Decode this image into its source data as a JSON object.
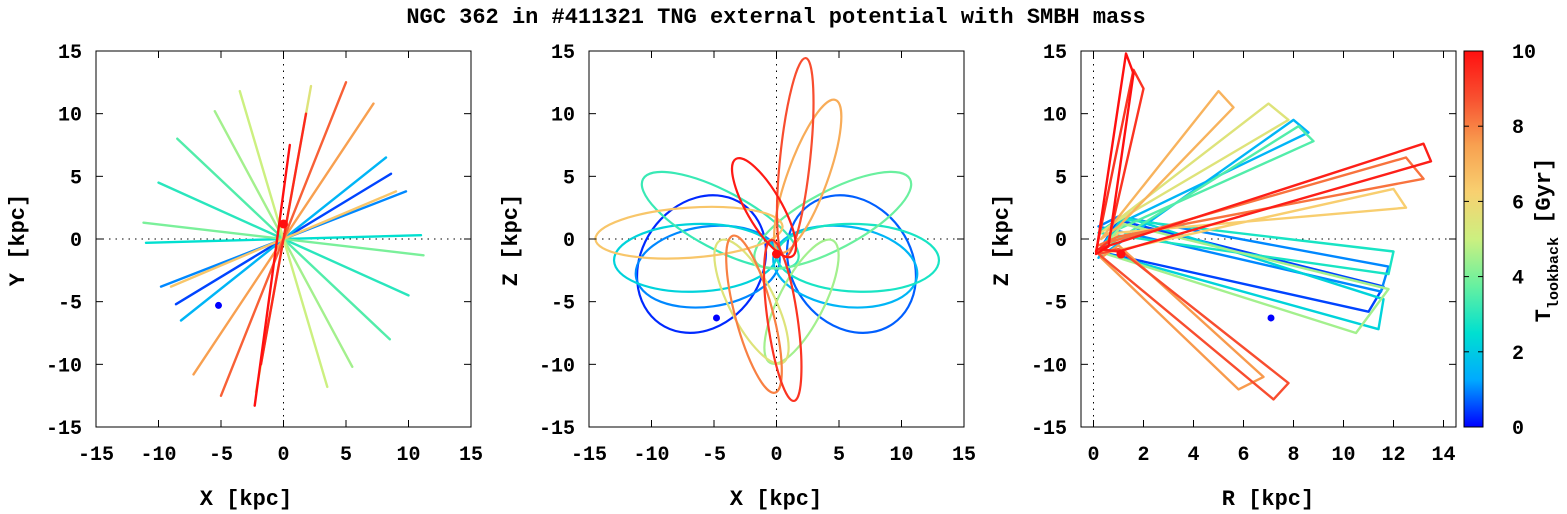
{
  "chart_data": {
    "title": "NGC 362 in #411321 TNG external potential with SMBH mass",
    "panels": [
      {
        "type": "line",
        "name": "xy",
        "xlabel": "X [kpc]",
        "ylabel": "Y [kpc]",
        "xlim": [
          -15,
          15
        ],
        "ylim": [
          -15,
          15
        ],
        "xticks": [
          "-15",
          "-10",
          "-5",
          "0",
          "5",
          "10",
          "15"
        ],
        "yticks": [
          "-15",
          "-10",
          "-5",
          "0",
          "5",
          "10",
          "15"
        ],
        "zero_lines": true,
        "series": [
          {
            "name": "orbit 0.5 Gyr",
            "t": 0.5,
            "points": [
              [
                8.6,
                5.2
              ],
              [
                -8.6,
                -5.2
              ]
            ]
          },
          {
            "name": "orbit 1.0 Gyr",
            "t": 1.0,
            "points": [
              [
                9.8,
                3.8
              ],
              [
                -9.8,
                -3.8
              ]
            ]
          },
          {
            "name": "orbit 1.5 Gyr",
            "t": 1.5,
            "points": [
              [
                8.2,
                6.5
              ],
              [
                -8.2,
                -6.5
              ]
            ]
          },
          {
            "name": "orbit 2.5 Gyr",
            "t": 2.5,
            "points": [
              [
                11.0,
                0.3
              ],
              [
                -11.0,
                -0.3
              ]
            ]
          },
          {
            "name": "orbit 3.0 Gyr",
            "t": 3.0,
            "points": [
              [
                -10.0,
                4.5
              ],
              [
                10.0,
                -4.5
              ]
            ]
          },
          {
            "name": "orbit 3.5 Gyr",
            "t": 3.5,
            "points": [
              [
                -8.5,
                8.0
              ],
              [
                8.5,
                -8.0
              ]
            ]
          },
          {
            "name": "orbit 4.0 Gyr",
            "t": 4.0,
            "points": [
              [
                -11.2,
                1.3
              ],
              [
                11.2,
                -1.3
              ]
            ]
          },
          {
            "name": "orbit 4.5 Gyr",
            "t": 4.5,
            "points": [
              [
                -5.5,
                10.2
              ],
              [
                5.5,
                -10.2
              ]
            ]
          },
          {
            "name": "orbit 5.0 Gyr",
            "t": 5.0,
            "points": [
              [
                -3.5,
                11.8
              ],
              [
                3.5,
                -11.8
              ]
            ]
          },
          {
            "name": "orbit 5.5 Gyr",
            "t": 5.5,
            "points": [
              [
                2.2,
                12.2
              ],
              [
                -2.2,
                -12.2
              ]
            ]
          },
          {
            "name": "orbit 6.5 Gyr",
            "t": 6.5,
            "points": [
              [
                9.0,
                3.8
              ],
              [
                -9.0,
                -3.8
              ]
            ]
          },
          {
            "name": "orbit 7.5 Gyr",
            "t": 7.5,
            "points": [
              [
                7.2,
                10.8
              ],
              [
                -7.2,
                -10.8
              ]
            ]
          },
          {
            "name": "orbit 8.5 Gyr",
            "t": 8.5,
            "points": [
              [
                5.0,
                12.5
              ],
              [
                -5.0,
                -12.5
              ]
            ]
          },
          {
            "name": "orbit 9.5 Gyr",
            "t": 9.5,
            "points": [
              [
                1.8,
                10.0
              ],
              [
                -1.8,
                -10.0
              ]
            ]
          },
          {
            "name": "orbit 10.0 Gyr",
            "t": 10.0,
            "points": [
              [
                0.5,
                7.5
              ],
              [
                -2.3,
                -13.3
              ]
            ]
          }
        ],
        "markers": [
          {
            "name": "position now",
            "t": 0.0,
            "x": -5.2,
            "y": -5.3
          },
          {
            "name": "position 10 Gyr ago",
            "t": 10.0,
            "x": 0.0,
            "y": 1.2
          }
        ]
      },
      {
        "type": "line",
        "name": "xz",
        "xlabel": "X [kpc]",
        "ylabel": "Z [kpc]",
        "xlim": [
          -15,
          15
        ],
        "ylim": [
          -15,
          15
        ],
        "xticks": [
          "-15",
          "-10",
          "-5",
          "0",
          "5",
          "10",
          "15"
        ],
        "yticks": [
          "-15",
          "-10",
          "-5",
          "0",
          "5",
          "10",
          "15"
        ],
        "zero_lines": true,
        "series": [
          {
            "name": "loop 0.3 Gyr",
            "t": 0.3,
            "ellipse": {
              "cx": -6.0,
              "cy": -2.0,
              "a": 4.8,
              "b": 5.8,
              "angle_deg": -35
            }
          },
          {
            "name": "loop 0.7 Gyr",
            "t": 0.7,
            "ellipse": {
              "cx": 6.0,
              "cy": -2.0,
              "a": 4.8,
              "b": 5.8,
              "angle_deg": 35
            }
          },
          {
            "name": "loop 1.0 Gyr",
            "t": 1.0,
            "ellipse": {
              "cx": -5.5,
              "cy": -2.2,
              "a": 5.8,
              "b": 3.2,
              "angle_deg": 8
            }
          },
          {
            "name": "loop 1.5 Gyr",
            "t": 1.5,
            "ellipse": {
              "cx": 5.5,
              "cy": -2.2,
              "a": 5.8,
              "b": 3.2,
              "angle_deg": -8
            }
          },
          {
            "name": "loop 2.2 Gyr",
            "t": 2.2,
            "ellipse": {
              "cx": -6.5,
              "cy": -1.5,
              "a": 6.5,
              "b": 2.7,
              "angle_deg": 2
            }
          },
          {
            "name": "loop 2.8 Gyr",
            "t": 2.8,
            "ellipse": {
              "cx": 6.5,
              "cy": -1.5,
              "a": 6.5,
              "b": 2.7,
              "angle_deg": -2
            }
          },
          {
            "name": "loop 3.2 Gyr",
            "t": 3.2,
            "ellipse": {
              "cx": -4.5,
              "cy": 1.5,
              "a": 7.0,
              "b": 2.3,
              "angle_deg": -28
            }
          },
          {
            "name": "loop 3.8 Gyr",
            "t": 3.8,
            "ellipse": {
              "cx": 4.5,
              "cy": 1.5,
              "a": 7.0,
              "b": 2.3,
              "angle_deg": 28
            }
          },
          {
            "name": "loop 4.5 Gyr",
            "t": 4.5,
            "ellipse": {
              "cx": 2.0,
              "cy": -5.0,
              "a": 5.5,
              "b": 1.8,
              "angle_deg": 63
            }
          },
          {
            "name": "loop 5.5 Gyr",
            "t": 5.5,
            "ellipse": {
              "cx": -2.0,
              "cy": -5.0,
              "a": 5.5,
              "b": 1.8,
              "angle_deg": -63
            }
          },
          {
            "name": "loop 6.5 Gyr",
            "t": 6.5,
            "ellipse": {
              "cx": -7.0,
              "cy": 0.5,
              "a": 7.5,
              "b": 2.0,
              "angle_deg": 4
            }
          },
          {
            "name": "loop 7.2 Gyr",
            "t": 7.2,
            "ellipse": {
              "cx": 2.5,
              "cy": 5.0,
              "a": 6.5,
              "b": 1.6,
              "angle_deg": 70
            }
          },
          {
            "name": "loop 8.0 Gyr",
            "t": 8.0,
            "ellipse": {
              "cx": -1.8,
              "cy": -6.0,
              "a": 6.5,
              "b": 1.5,
              "angle_deg": -75
            }
          },
          {
            "name": "loop 8.8 Gyr",
            "t": 8.8,
            "ellipse": {
              "cx": 1.5,
              "cy": 6.5,
              "a": 8.0,
              "b": 1.2,
              "angle_deg": 84
            }
          },
          {
            "name": "loop 9.3 Gyr",
            "t": 9.3,
            "ellipse": {
              "cx": 0.5,
              "cy": -6.5,
              "a": 6.5,
              "b": 1.2,
              "angle_deg": -82
            }
          },
          {
            "name": "loop 9.8 Gyr",
            "t": 9.8,
            "ellipse": {
              "cx": -1.0,
              "cy": 2.5,
              "a": 4.5,
              "b": 1.4,
              "angle_deg": -60
            }
          }
        ],
        "markers": [
          {
            "name": "position now",
            "t": 0.0,
            "x": -4.8,
            "y": -6.3
          },
          {
            "name": "position 10 Gyr ago",
            "t": 10.0,
            "x": 0.0,
            "y": -1.2
          }
        ]
      },
      {
        "type": "line",
        "name": "rz",
        "xlabel": "R [kpc]",
        "ylabel": "Z [kpc]",
        "xlim": [
          -0.5,
          14.5
        ],
        "ylim": [
          -15,
          15
        ],
        "xticks": [
          "0",
          "2",
          "4",
          "6",
          "8",
          "10",
          "12",
          "14"
        ],
        "yticks": [
          "-15",
          "-10",
          "-5",
          "0",
          "5",
          "10",
          "15"
        ],
        "zero_lines": true,
        "series": [
          {
            "name": "band 0.5 Gyr",
            "t": 0.5,
            "points": [
              [
                0.2,
                -1.0
              ],
              [
                11.0,
                -5.8
              ],
              [
                11.6,
                -3.8
              ],
              [
                1.0,
                1.5
              ]
            ]
          },
          {
            "name": "band 1.0 Gyr",
            "t": 1.0,
            "points": [
              [
                0.2,
                1.0
              ],
              [
                11.5,
                -4.2
              ],
              [
                11.8,
                -2.2
              ],
              [
                1.0,
                1.8
              ]
            ]
          },
          {
            "name": "band 1.5 Gyr",
            "t": 1.5,
            "points": [
              [
                0.2,
                -1.5
              ],
              [
                8.0,
                9.5
              ],
              [
                8.6,
                8.5
              ],
              [
                1.0,
                1.2
              ]
            ]
          },
          {
            "name": "band 2.2 Gyr",
            "t": 2.2,
            "points": [
              [
                0.2,
                -1.0
              ],
              [
                11.4,
                -7.2
              ],
              [
                11.6,
                -4.8
              ],
              [
                1.2,
                1.8
              ]
            ]
          },
          {
            "name": "band 2.8 Gyr",
            "t": 2.8,
            "points": [
              [
                0.2,
                0.5
              ],
              [
                11.8,
                -2.8
              ],
              [
                12.0,
                -1.0
              ],
              [
                1.0,
                1.6
              ]
            ]
          },
          {
            "name": "band 3.5 Gyr",
            "t": 3.5,
            "points": [
              [
                0.2,
                -1.0
              ],
              [
                8.2,
                9.0
              ],
              [
                8.8,
                7.8
              ],
              [
                1.0,
                0.8
              ]
            ]
          },
          {
            "name": "band 4.5 Gyr",
            "t": 4.5,
            "points": [
              [
                0.2,
                -1.0
              ],
              [
                10.5,
                -7.5
              ],
              [
                11.8,
                -4.0
              ],
              [
                1.2,
                1.2
              ]
            ]
          },
          {
            "name": "band 5.5 Gyr",
            "t": 5.5,
            "points": [
              [
                0.3,
                0.5
              ],
              [
                7.0,
                10.8
              ],
              [
                7.8,
                9.5
              ],
              [
                1.0,
                1.5
              ]
            ]
          },
          {
            "name": "band 6.3 Gyr",
            "t": 6.3,
            "points": [
              [
                0.3,
                -1.2
              ],
              [
                12.0,
                4.0
              ],
              [
                12.5,
                2.5
              ],
              [
                1.0,
                0.5
              ]
            ]
          },
          {
            "name": "band 7.0 Gyr",
            "t": 7.0,
            "points": [
              [
                0.3,
                0.0
              ],
              [
                5.0,
                11.8
              ],
              [
                5.6,
                10.5
              ],
              [
                1.0,
                1.0
              ]
            ]
          },
          {
            "name": "band 7.6 Gyr",
            "t": 7.6,
            "points": [
              [
                0.3,
                -1.5
              ],
              [
                5.8,
                -12.0
              ],
              [
                6.8,
                -11.0
              ],
              [
                1.0,
                -0.5
              ]
            ]
          },
          {
            "name": "band 8.2 Gyr",
            "t": 8.2,
            "points": [
              [
                0.2,
                -0.5
              ],
              [
                12.5,
                6.5
              ],
              [
                13.2,
                4.8
              ],
              [
                1.0,
                0.2
              ]
            ]
          },
          {
            "name": "band 8.8 Gyr",
            "t": 8.8,
            "points": [
              [
                0.2,
                -1.2
              ],
              [
                7.2,
                -12.8
              ],
              [
                7.8,
                -11.5
              ],
              [
                1.0,
                -0.8
              ]
            ]
          },
          {
            "name": "band 9.3 Gyr",
            "t": 9.3,
            "points": [
              [
                0.1,
                -1.0
              ],
              [
                1.6,
                13.5
              ],
              [
                2.0,
                12.0
              ],
              [
                0.6,
                -0.2
              ]
            ]
          },
          {
            "name": "band 9.7 Gyr",
            "t": 9.7,
            "points": [
              [
                0.2,
                -0.8
              ],
              [
                13.2,
                7.6
              ],
              [
                13.5,
                6.2
              ],
              [
                1.0,
                -1.0
              ]
            ]
          },
          {
            "name": "band 10.0 Gyr",
            "t": 10.0,
            "points": [
              [
                0.1,
                -1.2
              ],
              [
                1.3,
                14.8
              ],
              [
                1.6,
                13.2
              ],
              [
                0.6,
                -0.6
              ]
            ]
          }
        ],
        "markers": [
          {
            "name": "position now",
            "t": 0.0,
            "x": 7.1,
            "y": -6.3
          },
          {
            "name": "position 10 Gyr ago",
            "t": 10.0,
            "x": 1.1,
            "y": -1.2
          }
        ]
      }
    ],
    "colorbar": {
      "label": "T",
      "label_subscript": "lookback",
      "label_unit": " [Gyr]",
      "range": [
        0,
        10
      ],
      "ticks": [
        "0",
        "2",
        "4",
        "6",
        "8",
        "10"
      ],
      "stops": [
        "#0000ff",
        "#00aaff",
        "#00e0d0",
        "#66f0a0",
        "#ccf080",
        "#f8d070",
        "#f8a050",
        "#f85030",
        "#ff1010"
      ]
    }
  }
}
